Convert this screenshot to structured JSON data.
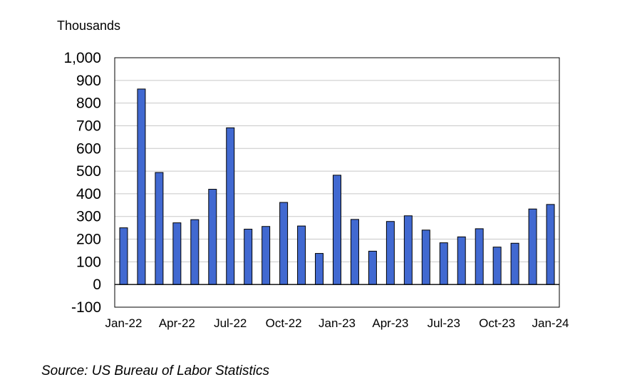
{
  "chart_data": {
    "type": "bar",
    "unit_label": "Thousands",
    "source": "Source: US Bureau of Labor Statistics",
    "categories": [
      "Jan-22",
      "Feb-22",
      "Mar-22",
      "Apr-22",
      "May-22",
      "Jun-22",
      "Jul-22",
      "Aug-22",
      "Sep-22",
      "Oct-22",
      "Nov-22",
      "Dec-22",
      "Jan-23",
      "Feb-23",
      "Mar-23",
      "Apr-23",
      "May-23",
      "Jun-23",
      "Jul-23",
      "Aug-23",
      "Sep-23",
      "Oct-23",
      "Nov-23",
      "Dec-23",
      "Jan-24"
    ],
    "values": [
      250,
      862,
      494,
      272,
      286,
      420,
      691,
      244,
      256,
      362,
      258,
      137,
      482,
      287,
      147,
      278,
      303,
      240,
      184,
      210,
      246,
      165,
      182,
      333,
      353
    ],
    "x_tick_labels": [
      "Jan-22",
      "Apr-22",
      "Jul-22",
      "Oct-22",
      "Jan-23",
      "Apr-23",
      "Jul-23",
      "Oct-23",
      "Jan-24"
    ],
    "y_ticks": [
      -100,
      0,
      100,
      200,
      300,
      400,
      500,
      600,
      700,
      800,
      900,
      1000
    ],
    "y_tick_labels": [
      "-100",
      "0",
      "100",
      "200",
      "300",
      "400",
      "500",
      "600",
      "700",
      "800",
      "900",
      "1,000"
    ],
    "ylim": [
      -100,
      1000
    ],
    "grid": true,
    "colors": {
      "bar": "#4169d1",
      "bar_edge": "#000000",
      "grid": "#c8c8c8",
      "axis": "#000000"
    }
  }
}
